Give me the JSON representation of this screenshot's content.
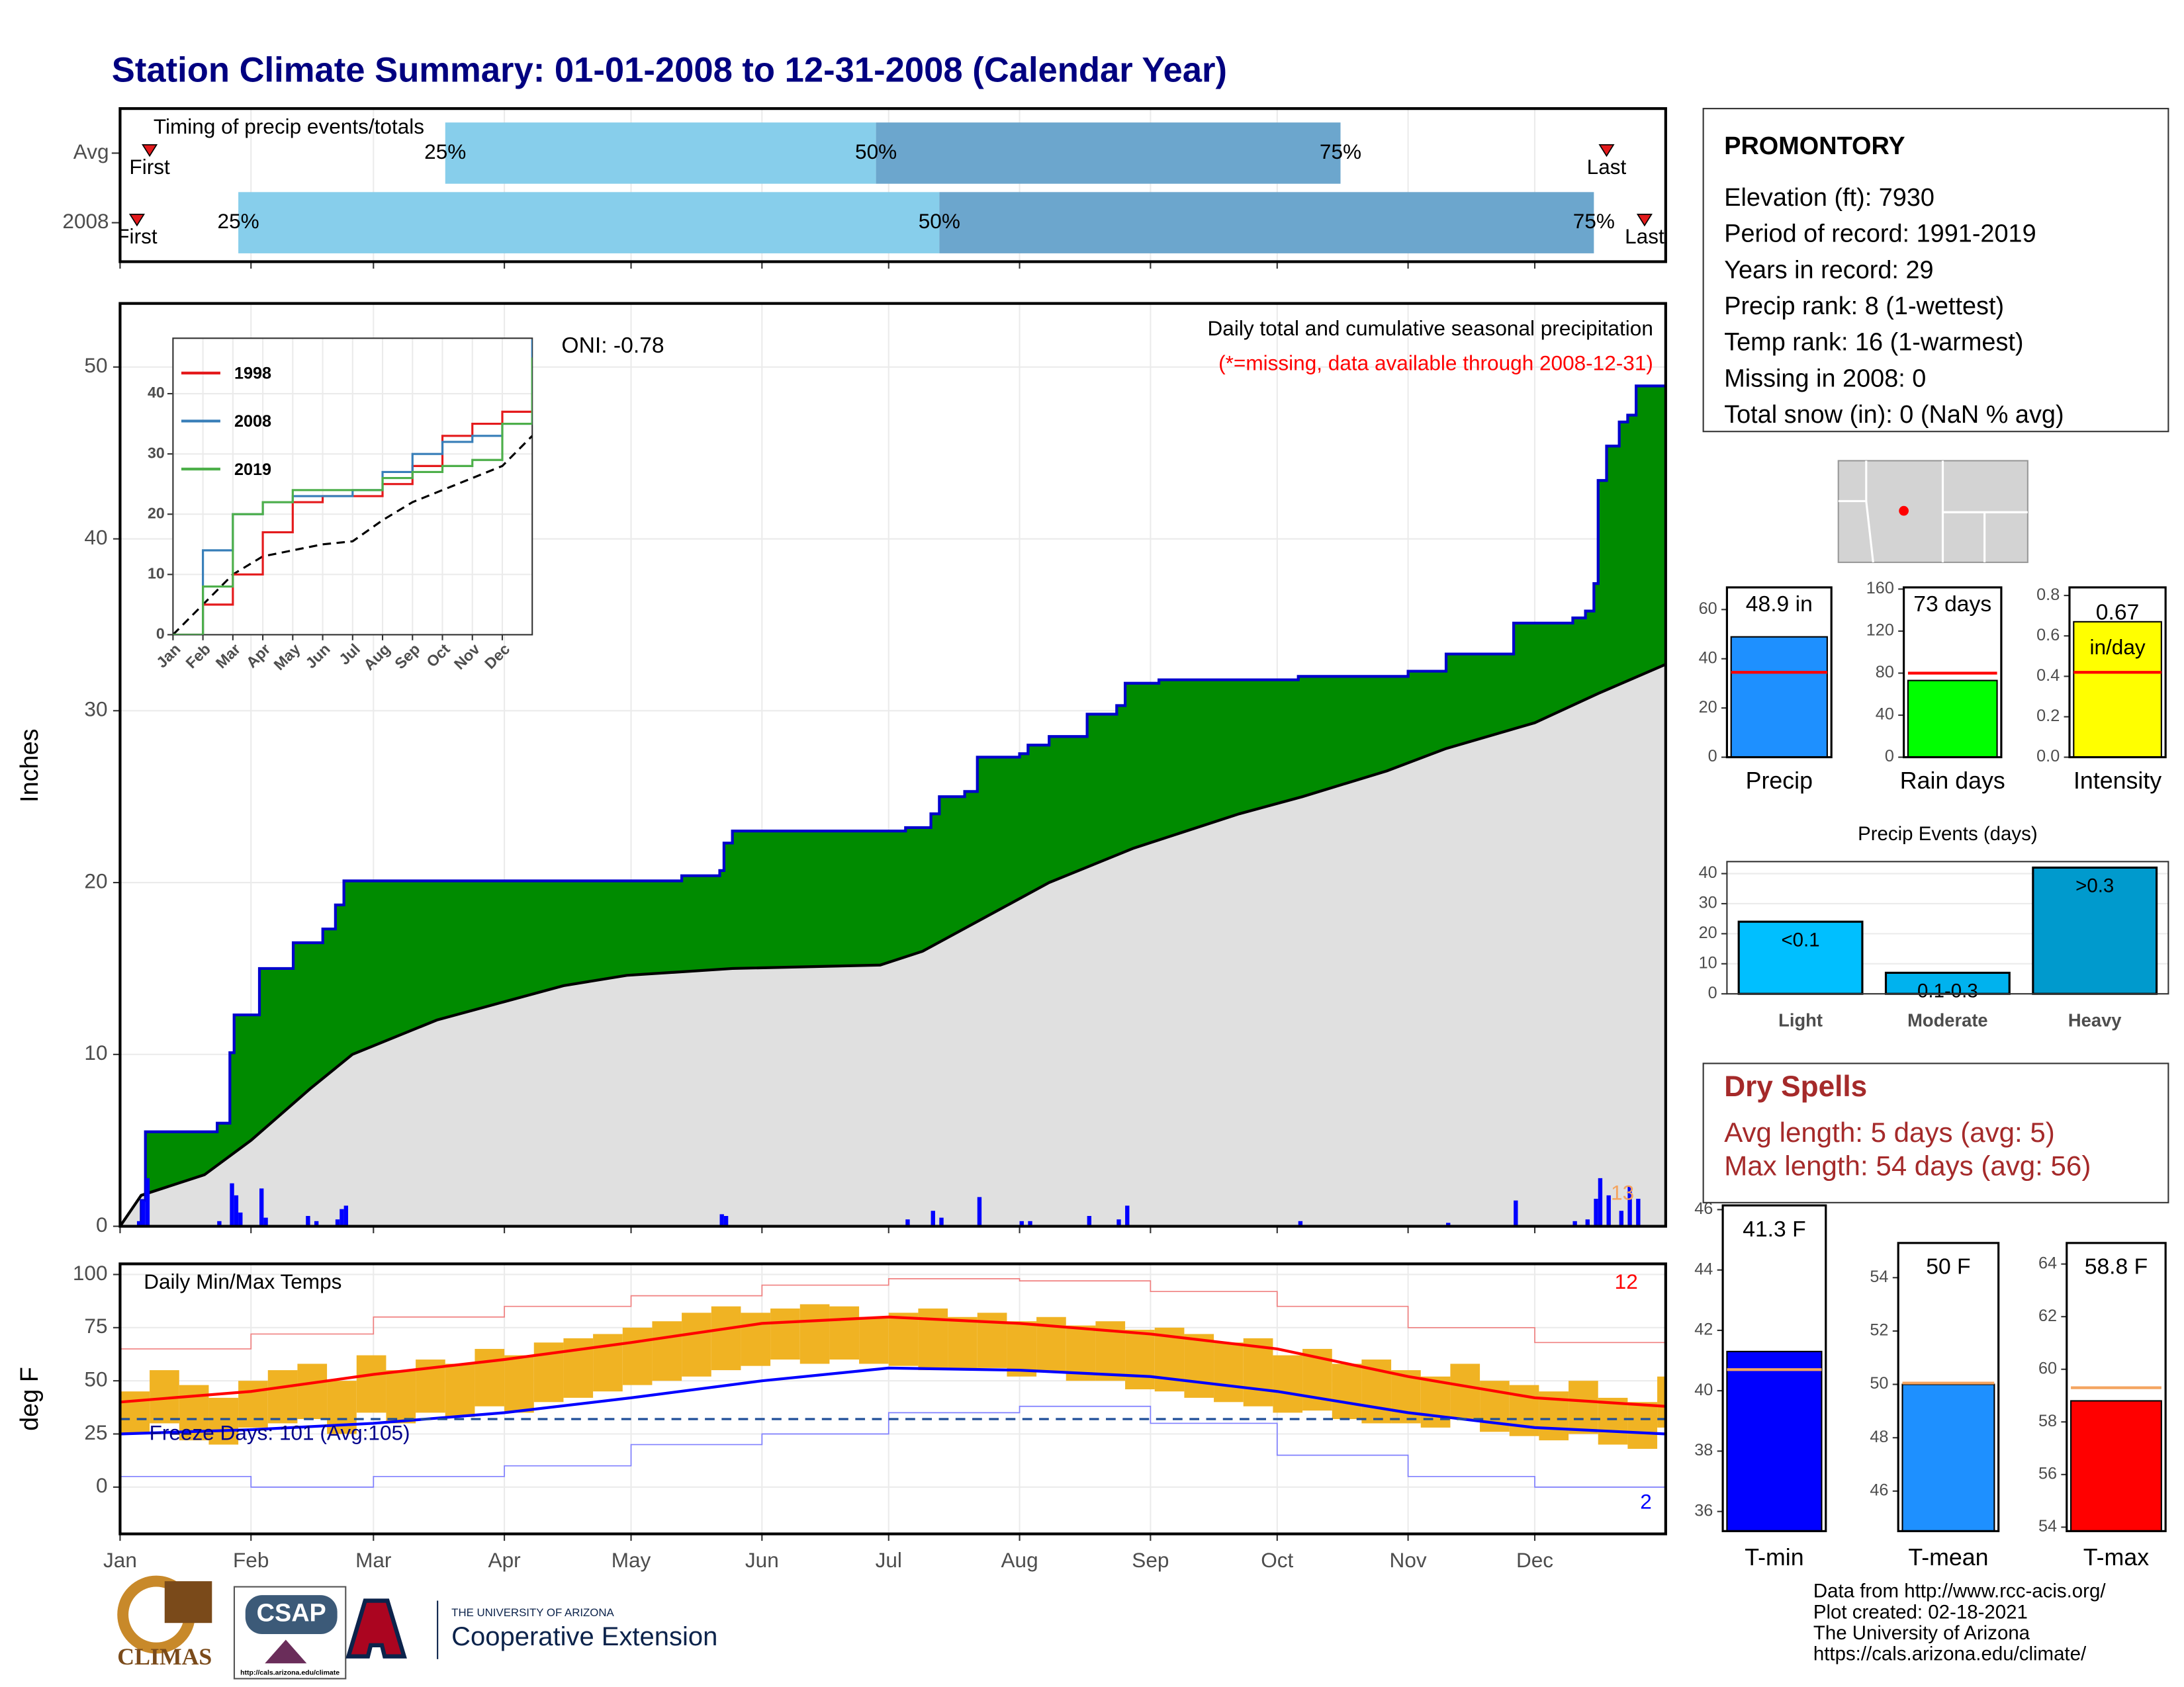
{
  "title": "Station Climate Summary: 01-01-2008 to 12-31-2008 (Calendar Year)",
  "time_axis": {
    "xlim": [
      0,
      366
    ],
    "xticks": [
      {
        "value": 0,
        "label": "Jan"
      },
      {
        "value": 31,
        "label": "Feb"
      },
      {
        "value": 60,
        "label": "Mar"
      },
      {
        "value": 91,
        "label": "Apr"
      },
      {
        "value": 121,
        "label": "May"
      },
      {
        "value": 152,
        "label": "Jun"
      },
      {
        "value": 182,
        "label": "Jul"
      },
      {
        "value": 213,
        "label": "Aug"
      },
      {
        "value": 244,
        "label": "Sep"
      },
      {
        "value": 274,
        "label": "Oct"
      },
      {
        "value": 305,
        "label": "Nov"
      },
      {
        "value": 335,
        "label": "Dec"
      }
    ]
  },
  "timing": {
    "type": "bar",
    "label": "Timing of precip events/totals",
    "rows": [
      {
        "name": "Avg",
        "first": 7,
        "q25": 77,
        "q50": 179,
        "q75": 289,
        "last": 352
      },
      {
        "name": "2008",
        "first": 4,
        "q25": 28,
        "q50": 194,
        "q75": 349,
        "last": 361
      }
    ],
    "markers": {
      "first": "First",
      "q25": "25%",
      "q50": "50%",
      "q75": "75%",
      "last": "Last"
    },
    "colors": {
      "early": "#87ceeb",
      "late": "#6ca6cd",
      "marker": "#e31a1c"
    }
  },
  "precip": {
    "type": "area",
    "ylabel": "Inches",
    "ylim": [
      0,
      53.7
    ],
    "yticks": [
      0,
      10,
      20,
      30,
      40,
      50
    ],
    "title": "Daily total and cumulative seasonal precipitation",
    "subtitle": "(*=missing, data available through 2008-12-31)",
    "annotation": "ONI: -0.78",
    "record_count": 13,
    "cumulative": {
      "color": "#008b00",
      "line_color": "#0000cd",
      "x": [
        0,
        5,
        6,
        23,
        26,
        27,
        33,
        41,
        48,
        51,
        53,
        133,
        142,
        143,
        145,
        186,
        192,
        194,
        200,
        203,
        213,
        215,
        220,
        229,
        236,
        238,
        246,
        279,
        305,
        314,
        330,
        344,
        347,
        349,
        350,
        352,
        355,
        357,
        359
      ],
      "values": [
        0,
        1.5,
        5.5,
        6.0,
        10.1,
        12.3,
        15,
        16.5,
        17.3,
        18.7,
        20.1,
        20.4,
        20.7,
        22.3,
        23.0,
        23.2,
        24,
        25,
        25.3,
        27.3,
        27.5,
        28,
        28.5,
        29.8,
        30.3,
        31.6,
        31.8,
        32,
        32.3,
        33.3,
        35.1,
        35.4,
        35.8,
        37.4,
        43.4,
        45.4,
        46.8,
        47.2,
        48.9
      ]
    },
    "average": {
      "color": "#e0e0e0",
      "line_color": "#000000",
      "x": [
        0,
        5,
        20,
        31,
        45,
        55,
        75,
        90,
        105,
        120,
        145,
        180,
        190,
        205,
        220,
        240,
        265,
        280,
        300,
        314,
        335,
        350,
        366
      ],
      "values": [
        0,
        1.8,
        3,
        5,
        8,
        10,
        12,
        13,
        14,
        14.6,
        15,
        15.2,
        16,
        18,
        20,
        22,
        24,
        25,
        26.5,
        27.8,
        29.3,
        31,
        32.7
      ]
    },
    "daily": {
      "color": "#0000ff",
      "x": [
        4,
        5,
        6,
        23,
        26,
        27,
        28,
        33,
        34,
        44,
        46,
        51,
        52,
        53,
        142,
        143,
        186,
        192,
        194,
        203,
        213,
        215,
        229,
        236,
        238,
        279,
        314,
        330,
        344,
        347,
        349,
        350,
        352,
        355,
        357,
        359
      ],
      "values": [
        0.3,
        1.5,
        2.8,
        0.3,
        2.5,
        1.8,
        0.8,
        2.2,
        0.5,
        0.6,
        0.3,
        0.4,
        1.0,
        1.2,
        0.7,
        0.6,
        0.4,
        0.9,
        0.5,
        1.7,
        0.3,
        0.3,
        0.6,
        0.4,
        1.2,
        0.3,
        0.2,
        1.5,
        0.3,
        0.4,
        1.6,
        2.8,
        1.8,
        0.9,
        2.3,
        1.6
      ]
    }
  },
  "inset": {
    "type": "line",
    "ylim": [
      0,
      49.2
    ],
    "yticks": [
      0,
      10,
      20,
      30,
      40
    ],
    "xlim": [
      0,
      12
    ],
    "xticks": [
      {
        "value": 0,
        "label": "Jan"
      },
      {
        "value": 1,
        "label": "Feb"
      },
      {
        "value": 2,
        "label": "Mar"
      },
      {
        "value": 3,
        "label": "Apr"
      },
      {
        "value": 4,
        "label": "May"
      },
      {
        "value": 5,
        "label": "Jun"
      },
      {
        "value": 6,
        "label": "Jul"
      },
      {
        "value": 7,
        "label": "Aug"
      },
      {
        "value": 8,
        "label": "Sep"
      },
      {
        "value": 9,
        "label": "Oct"
      },
      {
        "value": 10,
        "label": "Nov"
      },
      {
        "value": 11,
        "label": "Dec"
      }
    ],
    "x": [
      0,
      1,
      2,
      3,
      4,
      5,
      6,
      7,
      8,
      9,
      10,
      11,
      12
    ],
    "series": [
      {
        "name": "1998",
        "color": "#e41a1c",
        "values": [
          0,
          5,
          10,
          17,
          22,
          23,
          23,
          25,
          28,
          33,
          35,
          37,
          40
        ]
      },
      {
        "name": "2008",
        "color": "#377eb8",
        "values": [
          0,
          14,
          20,
          22,
          23,
          23,
          24,
          27,
          30,
          32,
          33,
          35,
          49
        ]
      },
      {
        "name": "2019",
        "color": "#4daf4a",
        "values": [
          0,
          8,
          20,
          22,
          24,
          24,
          24,
          26,
          27,
          28,
          29,
          35,
          46
        ]
      }
    ],
    "average": {
      "color": "#000000",
      "values": [
        0,
        5,
        10,
        13,
        14,
        15,
        15.5,
        19,
        22,
        24,
        26,
        28,
        33
      ]
    }
  },
  "temps": {
    "type": "range",
    "ylabel": "deg F",
    "ylim": [
      -22,
      105
    ],
    "yticks": [
      0,
      25,
      50,
      75,
      100
    ],
    "title": "Daily Min/Max Temps",
    "freeze_line": 32,
    "freeze_label": "Freeze Days: 101 (Avg:105)",
    "record_high_count": 12,
    "record_low_count": 2,
    "observed": {
      "color": "#f0b323",
      "x": [
        0,
        7,
        14,
        21,
        28,
        35,
        42,
        49,
        56,
        63,
        70,
        77,
        84,
        91,
        98,
        105,
        112,
        119,
        126,
        133,
        140,
        147,
        154,
        161,
        168,
        175,
        182,
        189,
        196,
        203,
        210,
        217,
        224,
        231,
        238,
        245,
        252,
        259,
        266,
        273,
        280,
        287,
        294,
        301,
        308,
        315,
        322,
        329,
        336,
        343,
        350,
        357,
        364
      ],
      "high": [
        45,
        55,
        48,
        42,
        50,
        55,
        58,
        50,
        62,
        55,
        60,
        58,
        65,
        62,
        68,
        70,
        72,
        75,
        78,
        82,
        85,
        82,
        84,
        86,
        85,
        80,
        82,
        84,
        80,
        82,
        78,
        80,
        76,
        78,
        74,
        75,
        72,
        68,
        70,
        62,
        65,
        58,
        60,
        55,
        52,
        58,
        50,
        48,
        45,
        50,
        42,
        40,
        52
      ],
      "low": [
        25,
        30,
        22,
        20,
        28,
        30,
        32,
        25,
        35,
        30,
        35,
        33,
        38,
        35,
        40,
        42,
        45,
        48,
        50,
        52,
        55,
        57,
        60,
        58,
        60,
        58,
        57,
        55,
        55,
        56,
        52,
        54,
        50,
        50,
        46,
        45,
        42,
        40,
        38,
        35,
        36,
        32,
        30,
        30,
        28,
        32,
        26,
        24,
        22,
        25,
        20,
        18,
        28
      ]
    },
    "normal_max": {
      "color": "#ff0000",
      "x": [
        0,
        31,
        60,
        91,
        121,
        152,
        182,
        213,
        244,
        274,
        305,
        335,
        366
      ],
      "values": [
        40,
        45,
        53,
        60,
        68,
        77,
        80,
        77,
        72,
        65,
        52,
        42,
        38
      ]
    },
    "normal_min": {
      "color": "#0000ff",
      "x": [
        0,
        31,
        60,
        91,
        121,
        152,
        182,
        213,
        244,
        274,
        305,
        335,
        366
      ],
      "values": [
        25,
        27,
        30,
        35,
        42,
        50,
        56,
        55,
        52,
        45,
        35,
        28,
        25
      ]
    },
    "record_max": {
      "color": "#f08080",
      "x": [
        0,
        31,
        60,
        91,
        121,
        152,
        182,
        213,
        244,
        274,
        305,
        335,
        366
      ],
      "values": [
        65,
        72,
        80,
        85,
        90,
        95,
        98,
        97,
        92,
        85,
        75,
        68,
        65
      ]
    },
    "record_min": {
      "color": "#8080ff",
      "x": [
        0,
        31,
        60,
        91,
        121,
        152,
        182,
        213,
        244,
        274,
        305,
        335,
        366
      ],
      "values": [
        5,
        0,
        5,
        10,
        20,
        25,
        35,
        38,
        30,
        15,
        5,
        0,
        5
      ]
    }
  },
  "station": {
    "name": "PROMONTORY",
    "lines": [
      "Elevation (ft): 7930",
      "Period of record: 1991-2019",
      "Years in record: 29",
      "Precip rank: 8 (1-wettest)",
      "Temp rank: 16 (1-warmest)",
      "Missing in 2008: 0",
      "Total snow (in): 0 (NaN % avg)"
    ]
  },
  "summary_bars": [
    {
      "type": "bar",
      "category": "Precip",
      "value": 48.9,
      "value_label": "48.9 in",
      "average": 34.5,
      "color": "#1e90ff",
      "avg_color": "#ff0000",
      "ylim": [
        0,
        69
      ],
      "yticks": [
        0,
        20,
        40,
        60
      ]
    },
    {
      "type": "bar",
      "category": "Rain days",
      "value": 73,
      "value_label": "73 days",
      "average": 80,
      "color": "#00ff00",
      "avg_color": "#ff0000",
      "ylim": [
        0,
        161.6
      ],
      "yticks": [
        0,
        40,
        80,
        120,
        160
      ]
    },
    {
      "type": "bar",
      "category": "Intensity",
      "value": 0.67,
      "unit": "in/day",
      "average": 0.42,
      "color": "#ffff00",
      "avg_color": "#ff0000",
      "ylim": [
        0,
        0.84
      ],
      "yticks": [
        {
          "value": 0,
          "label": "0.0"
        },
        0.2,
        0.4,
        0.6,
        0.8
      ]
    }
  ],
  "events": {
    "type": "bar",
    "title": "Precip Events (days)",
    "categories": [
      "Light",
      "Moderate",
      "Heavy"
    ],
    "values": [
      24,
      7,
      42
    ],
    "ranges": [
      "<0.1",
      "0.1-0.3",
      ">0.3"
    ],
    "colors": [
      "#00bfff",
      "#00b2ee",
      "#009acd"
    ],
    "ylim": [
      0,
      44
    ],
    "yticks": [
      0,
      10,
      20,
      30,
      40
    ],
    "grid": true
  },
  "dry_spells": {
    "title": "Dry Spells",
    "lines": [
      "Avg length: 5 days (avg: 5)",
      "Max length: 54 days (avg: 56)"
    ],
    "color": "#a52a2a"
  },
  "temp_bars": [
    {
      "type": "bar",
      "category": "T-min",
      "value": 41.3,
      "value_label": "41.3 F",
      "average": 40.7,
      "color": "#0000ff",
      "avg_color": "#f4a460",
      "ylim": [
        35.35,
        46.14
      ],
      "yticks": [
        36,
        38,
        40,
        42,
        44,
        46
      ]
    },
    {
      "type": "bar",
      "category": "T-mean",
      "value": 50,
      "value_label": "50 F",
      "average": 50.05,
      "color": "#1e90ff",
      "avg_color": "#f4a460",
      "ylim": [
        44.5,
        55.3
      ],
      "yticks": [
        46,
        48,
        50,
        52,
        54
      ]
    },
    {
      "type": "bar",
      "category": "T-max",
      "value": 58.8,
      "value_label": "58.8 F",
      "average": 59.3,
      "color": "#ff0000",
      "avg_color": "#f4a460",
      "ylim": [
        53.85,
        64.8
      ],
      "yticks": [
        54,
        56,
        58,
        60,
        62,
        64
      ]
    }
  ],
  "footer": {
    "credits": [
      "Data from http://www.rcc-acis.org/",
      "Plot created: 02-18-2021",
      "The University of Arizona",
      "https://cals.arizona.edu/climate/"
    ],
    "logos": {
      "climas": "CLIMAS",
      "csap": "CSAP",
      "csap_url": "http://cals.arizona.edu/climate",
      "ua": "THE UNIVERSITY OF ARIZONA",
      "extension": "Cooperative Extension"
    }
  }
}
